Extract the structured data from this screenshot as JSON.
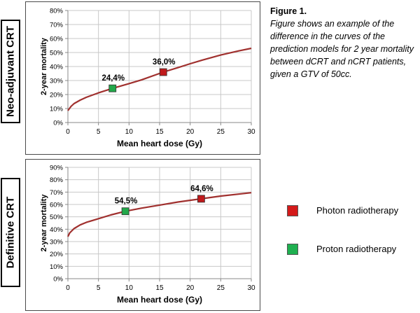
{
  "side_labels": [
    "Neo-adjuvant CRT",
    "Definitive CRT"
  ],
  "caption": {
    "title": "Figure 1.",
    "body": "Figure shows an example of the difference in the curves of the prediction models for 2 year mortality between dCRT and nCRT patients, given a GTV of 50cc."
  },
  "legend": [
    {
      "label": "Photon radiotherapy",
      "color": "#d41a1a"
    },
    {
      "label": "Proton radiotherapy",
      "color": "#1fb050"
    }
  ],
  "colors": {
    "curve": "#a0302e",
    "grid": "#c8c8c8",
    "photon": "#c0191b",
    "proton": "#22a84a"
  },
  "chart_data": [
    {
      "type": "line",
      "xlabel": "Mean heart dose (Gy)",
      "ylabel": "2-year mortality",
      "xlim": [
        0,
        30
      ],
      "ylim": [
        0,
        80
      ],
      "x_ticks": [
        "0",
        "5",
        "10",
        "15",
        "20",
        "25",
        "30"
      ],
      "y_ticks": [
        "0%",
        "10%",
        "20%",
        "30%",
        "40%",
        "50%",
        "60%",
        "70%",
        "80%"
      ],
      "grid": true,
      "curve": {
        "x": [
          0,
          0.5,
          1,
          2,
          3,
          5,
          7.3,
          10,
          12,
          15.6,
          18,
          20,
          22,
          25,
          28,
          30
        ],
        "y": [
          8.5,
          11.5,
          13.5,
          16,
          18,
          21.2,
          24.4,
          27.8,
          30.4,
          36.0,
          39.2,
          42,
          44.6,
          48.2,
          51.2,
          53
        ]
      },
      "points": [
        {
          "x": 7.3,
          "y": 24.4,
          "label": "24,4%",
          "series": "Proton radiotherapy"
        },
        {
          "x": 15.6,
          "y": 36.0,
          "label": "36,0%",
          "series": "Photon radiotherapy"
        }
      ]
    },
    {
      "type": "line",
      "xlabel": "Mean heart dose (Gy)",
      "ylabel": "2-year mortality",
      "xlim": [
        0,
        30
      ],
      "ylim": [
        0,
        90
      ],
      "x_ticks": [
        "0",
        "5",
        "10",
        "15",
        "20",
        "25",
        "30"
      ],
      "y_ticks": [
        "0%",
        "10%",
        "20%",
        "30%",
        "40%",
        "50%",
        "60%",
        "70%",
        "80%",
        "90%"
      ],
      "grid": true,
      "curve": {
        "x": [
          0,
          0.3,
          1,
          2,
          3,
          5,
          7,
          9.4,
          12,
          15,
          18,
          21.8,
          25,
          30
        ],
        "y": [
          34,
          37,
          40.5,
          43.5,
          45.5,
          48.5,
          51.5,
          54.5,
          57,
          59.5,
          62,
          64.6,
          66.8,
          69.5
        ]
      },
      "points": [
        {
          "x": 9.4,
          "y": 54.5,
          "label": "54,5%",
          "series": "Proton radiotherapy"
        },
        {
          "x": 21.8,
          "y": 64.6,
          "label": "64,6%",
          "series": "Photon radiotherapy"
        }
      ]
    }
  ]
}
